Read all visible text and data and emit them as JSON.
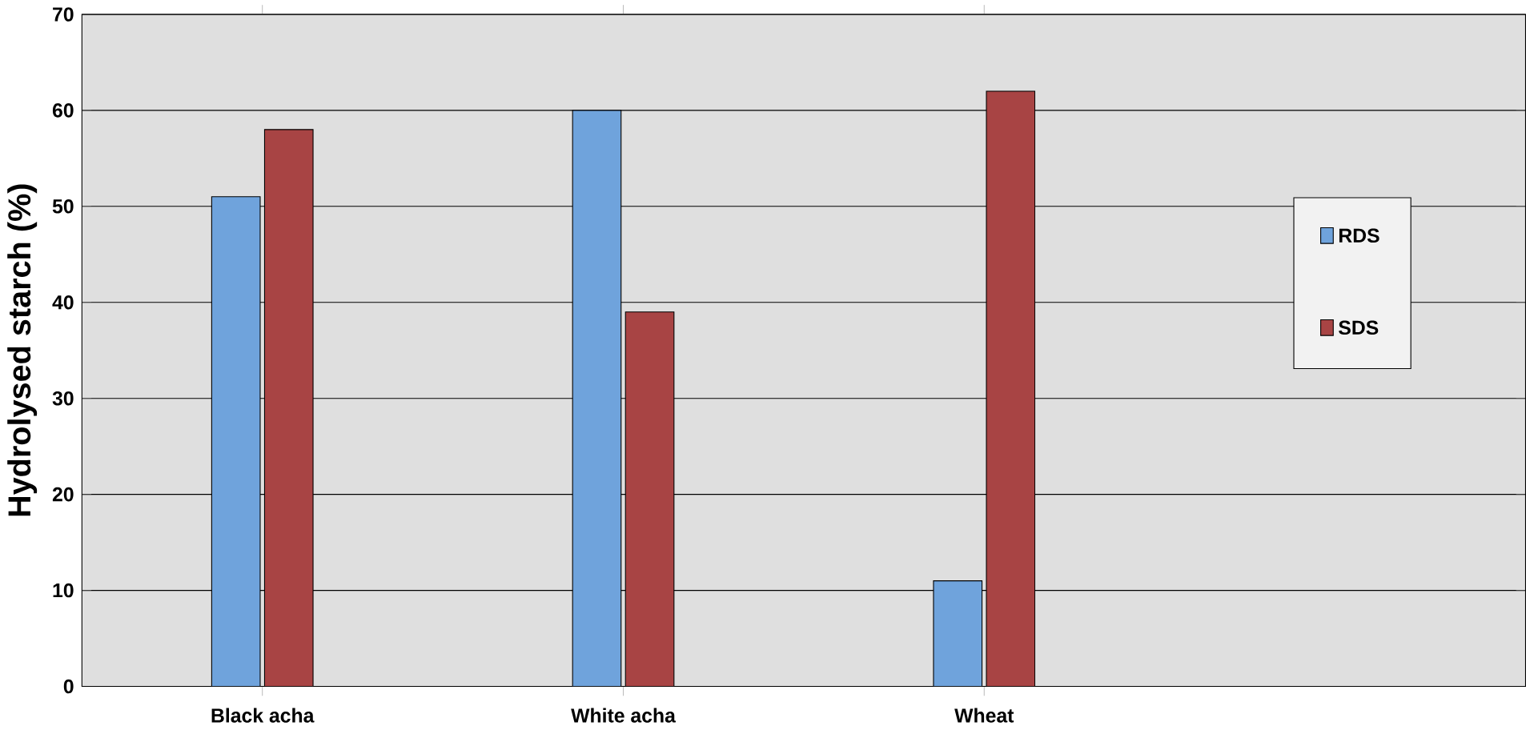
{
  "chart_data": {
    "type": "bar",
    "ylabel": "Hydrolysed starch (%)",
    "categories": [
      "Black acha",
      "White acha",
      "Wheat"
    ],
    "series": [
      {
        "name": "RDS",
        "color": "#6fa3dc",
        "values": [
          51,
          60,
          11
        ]
      },
      {
        "name": "SDS",
        "color": "#a84444",
        "values": [
          58,
          39,
          62
        ]
      }
    ],
    "ylim": [
      0,
      70
    ],
    "yticks": [
      0,
      10,
      20,
      30,
      40,
      50,
      60,
      70
    ],
    "grid": "y",
    "legend": "right"
  }
}
